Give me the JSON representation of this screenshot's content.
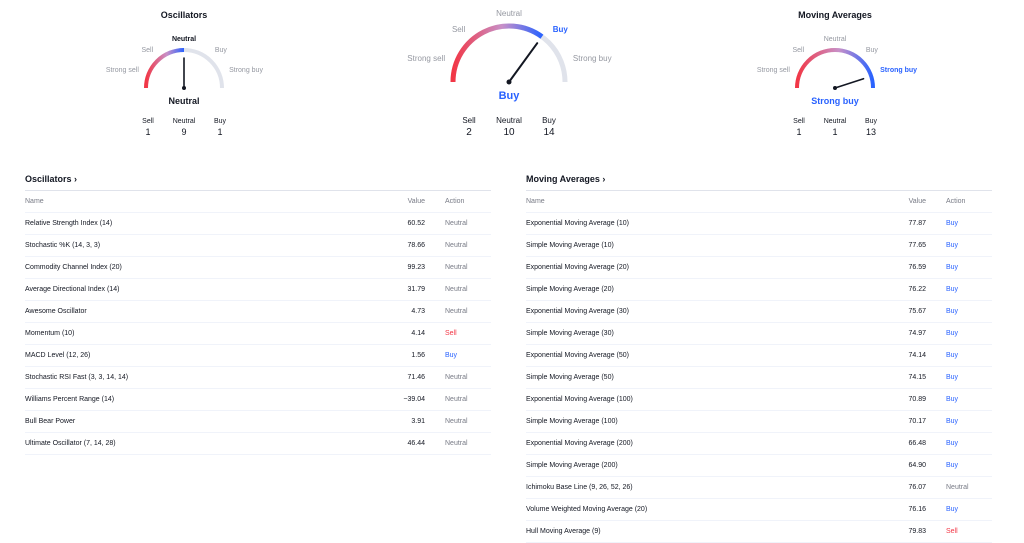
{
  "gauges": [
    {
      "title": "Oscillators",
      "labels": {
        "strong_sell": "Strong sell",
        "sell": "Sell",
        "neutral": "Neutral",
        "buy": "Buy",
        "strong_buy": "Strong buy"
      },
      "active": "neutral",
      "reading": "Neutral",
      "reading_color": "#131722",
      "counts": [
        {
          "label": "Sell",
          "value": "1"
        },
        {
          "label": "Neutral",
          "value": "9"
        },
        {
          "label": "Buy",
          "value": "1"
        }
      ]
    },
    {
      "title": "",
      "labels": {
        "strong_sell": "Strong sell",
        "sell": "Sell",
        "neutral": "Neutral",
        "buy": "Buy",
        "strong_buy": "Strong buy"
      },
      "active": "buy",
      "reading": "Buy",
      "reading_color": "#2962ff",
      "counts": [
        {
          "label": "Sell",
          "value": "2"
        },
        {
          "label": "Neutral",
          "value": "10"
        },
        {
          "label": "Buy",
          "value": "14"
        }
      ]
    },
    {
      "title": "Moving Averages",
      "labels": {
        "strong_sell": "Strong sell",
        "sell": "Sell",
        "neutral": "Neutral",
        "buy": "Buy",
        "strong_buy": "Strong buy"
      },
      "active": "strong_buy",
      "reading": "Strong buy",
      "reading_color": "#2962ff",
      "counts": [
        {
          "label": "Sell",
          "value": "1"
        },
        {
          "label": "Neutral",
          "value": "1"
        },
        {
          "label": "Buy",
          "value": "13"
        }
      ]
    }
  ],
  "oscillators": {
    "title": "Oscillators ›",
    "headers": {
      "name": "Name",
      "value": "Value",
      "action": "Action"
    },
    "rows": [
      {
        "name": "Relative Strength Index (14)",
        "value": "60.52",
        "action": "Neutral"
      },
      {
        "name": "Stochastic %K (14, 3, 3)",
        "value": "78.66",
        "action": "Neutral"
      },
      {
        "name": "Commodity Channel Index (20)",
        "value": "99.23",
        "action": "Neutral"
      },
      {
        "name": "Average Directional Index (14)",
        "value": "31.79",
        "action": "Neutral"
      },
      {
        "name": "Awesome Oscillator",
        "value": "4.73",
        "action": "Neutral"
      },
      {
        "name": "Momentum (10)",
        "value": "4.14",
        "action": "Sell"
      },
      {
        "name": "MACD Level (12, 26)",
        "value": "1.56",
        "action": "Buy"
      },
      {
        "name": "Stochastic RSI Fast (3, 3, 14, 14)",
        "value": "71.46",
        "action": "Neutral"
      },
      {
        "name": "Williams Percent Range (14)",
        "value": "−39.04",
        "action": "Neutral"
      },
      {
        "name": "Bull Bear Power",
        "value": "3.91",
        "action": "Neutral"
      },
      {
        "name": "Ultimate Oscillator (7, 14, 28)",
        "value": "46.44",
        "action": "Neutral"
      }
    ]
  },
  "moving_averages": {
    "title": "Moving Averages ›",
    "headers": {
      "name": "Name",
      "value": "Value",
      "action": "Action"
    },
    "rows": [
      {
        "name": "Exponential Moving Average (10)",
        "value": "77.87",
        "action": "Buy"
      },
      {
        "name": "Simple Moving Average (10)",
        "value": "77.65",
        "action": "Buy"
      },
      {
        "name": "Exponential Moving Average (20)",
        "value": "76.59",
        "action": "Buy"
      },
      {
        "name": "Simple Moving Average (20)",
        "value": "76.22",
        "action": "Buy"
      },
      {
        "name": "Exponential Moving Average (30)",
        "value": "75.67",
        "action": "Buy"
      },
      {
        "name": "Simple Moving Average (30)",
        "value": "74.97",
        "action": "Buy"
      },
      {
        "name": "Exponential Moving Average (50)",
        "value": "74.14",
        "action": "Buy"
      },
      {
        "name": "Simple Moving Average (50)",
        "value": "74.15",
        "action": "Buy"
      },
      {
        "name": "Exponential Moving Average (100)",
        "value": "70.89",
        "action": "Buy"
      },
      {
        "name": "Simple Moving Average (100)",
        "value": "70.17",
        "action": "Buy"
      },
      {
        "name": "Exponential Moving Average (200)",
        "value": "66.48",
        "action": "Buy"
      },
      {
        "name": "Simple Moving Average (200)",
        "value": "64.90",
        "action": "Buy"
      },
      {
        "name": "Ichimoku Base Line (9, 26, 52, 26)",
        "value": "76.07",
        "action": "Neutral"
      },
      {
        "name": "Volume Weighted Moving Average (20)",
        "value": "76.16",
        "action": "Buy"
      },
      {
        "name": "Hull Moving Average (9)",
        "value": "79.83",
        "action": "Sell"
      }
    ]
  },
  "colors": {
    "buy": "#2962ff",
    "sell": "#f23645",
    "neutral": "#787b86",
    "track": "#e0e3eb"
  }
}
